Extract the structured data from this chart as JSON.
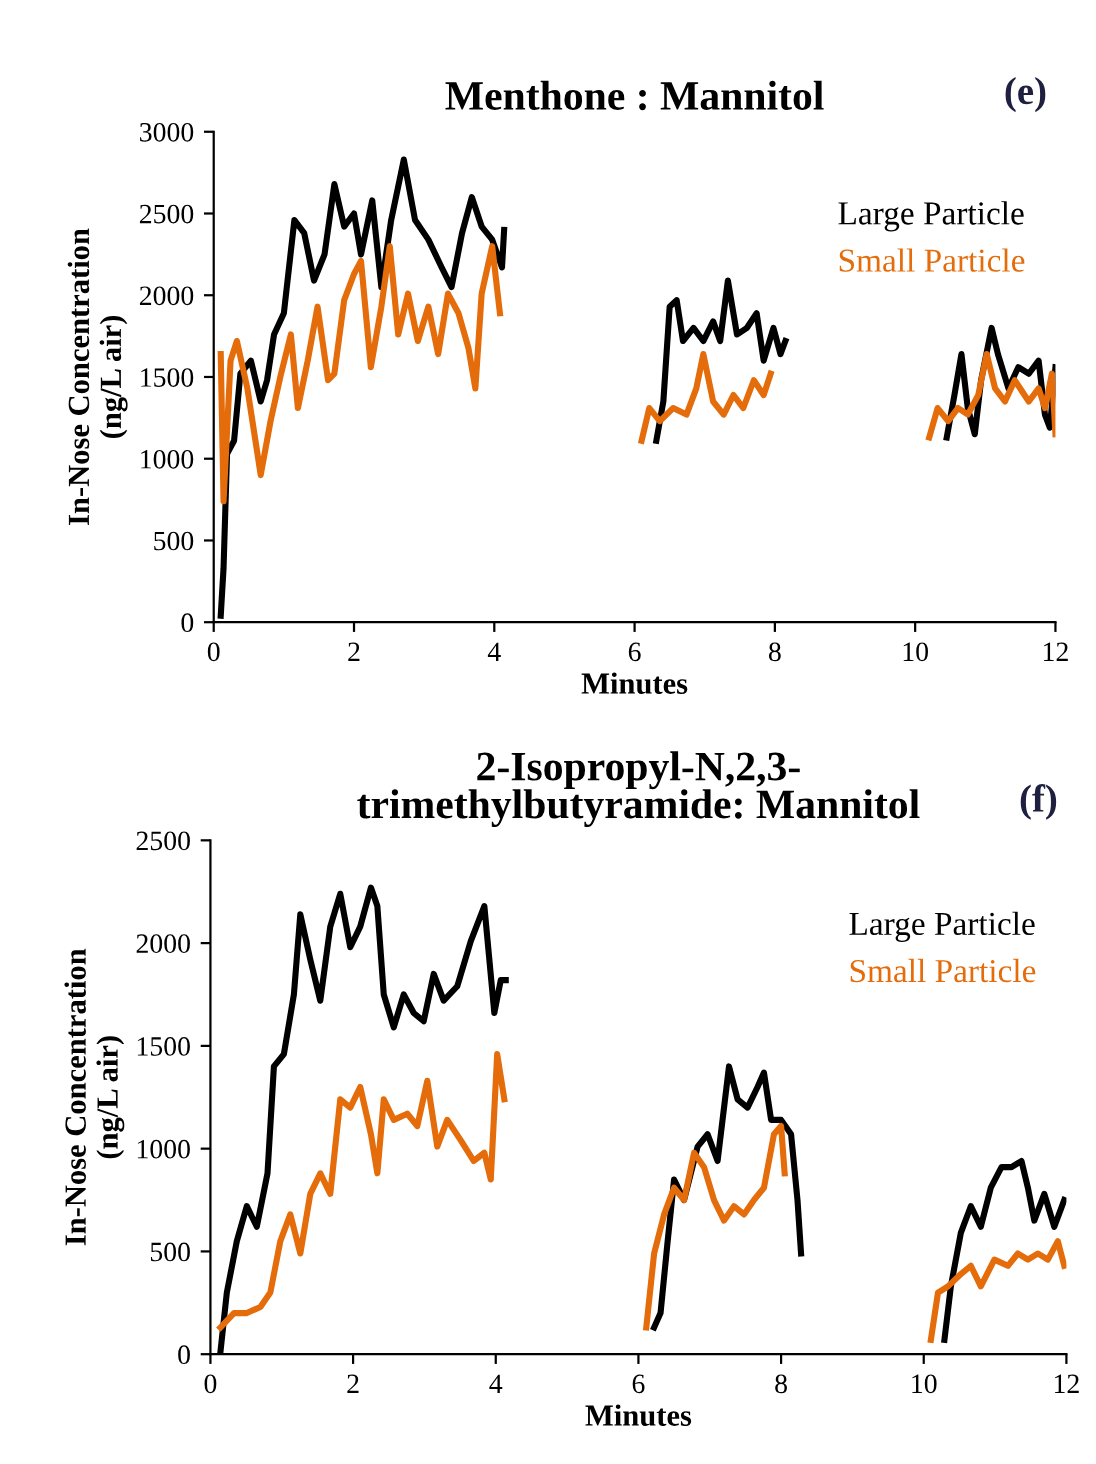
{
  "chart_data": [
    {
      "type": "line",
      "title": "Menthone : Mannitol",
      "xlabel": "Minutes",
      "ylabel": "In-Nose Concentration\n(ng/L air)",
      "annotations": [
        "(e)"
      ],
      "xlim": [
        0,
        12
      ],
      "xticks": [
        0,
        2,
        4,
        6,
        8,
        10,
        12
      ],
      "ylim": [
        0,
        3000
      ],
      "yticks": [
        0,
        500,
        1000,
        1500,
        2000,
        2500,
        3000
      ],
      "grid": false,
      "legend": "top right",
      "marker": "none",
      "line_style": "solid",
      "series": [
        {
          "name": "Large Particle",
          "color": "#000000",
          "x": [
            0.1,
            0.14,
            0.19,
            0.29,
            0.38,
            0.53,
            0.67,
            0.76,
            0.86,
            1.0,
            1.15,
            1.29,
            1.43,
            1.58,
            1.72,
            1.86,
            2.0,
            2.1,
            2.26,
            2.39,
            2.53,
            2.71,
            2.87,
            3.06,
            3.25,
            3.39,
            3.54,
            3.68,
            3.82,
            3.97,
            4.11,
            4.14,
            5,
            6.31,
            6.41,
            6.5,
            6.6,
            6.69,
            6.84,
            6.98,
            7.12,
            7.22,
            7.33,
            7.46,
            7.6,
            7.74,
            7.84,
            7.98,
            8.08,
            8.15,
            9,
            10.45,
            10.56,
            10.66,
            10.75,
            10.85,
            10.94,
            11.09,
            11.18,
            11.33,
            11.47,
            11.62,
            11.76,
            11.85,
            11.92,
            12.0
          ],
          "values": [
            40,
            330,
            1030,
            1110,
            1520,
            1600,
            1350,
            1480,
            1760,
            1890,
            2460,
            2380,
            2090,
            2250,
            2680,
            2420,
            2500,
            2250,
            2580,
            2050,
            2460,
            2830,
            2460,
            2340,
            2170,
            2050,
            2380,
            2600,
            2420,
            2340,
            2170,
            2400,
            null,
            1110,
            1350,
            1930,
            1970,
            1720,
            1800,
            1720,
            1840,
            1720,
            2090,
            1760,
            1800,
            1890,
            1600,
            1800,
            1640,
            1720,
            null,
            1130,
            1390,
            1640,
            1310,
            1150,
            1480,
            1800,
            1640,
            1430,
            1560,
            1520,
            1600,
            1270,
            1190,
            1560
          ]
        },
        {
          "name": "Small Particle",
          "color": "#e46c0a",
          "x": [
            0.1,
            0.14,
            0.24,
            0.33,
            0.48,
            0.67,
            0.81,
            0.96,
            1.1,
            1.2,
            1.34,
            1.48,
            1.63,
            1.72,
            1.86,
            2.0,
            2.1,
            2.24,
            2.39,
            2.51,
            2.63,
            2.77,
            2.91,
            3.06,
            3.2,
            3.34,
            3.49,
            3.63,
            3.73,
            3.82,
            3.97,
            4.08,
            5,
            6.1,
            6.21,
            6.36,
            6.55,
            6.74,
            6.88,
            6.98,
            7.12,
            7.27,
            7.41,
            7.55,
            7.7,
            7.84,
            7.94,
            9,
            10.2,
            10.32,
            10.47,
            10.61,
            10.75,
            10.9,
            11.02,
            11.14,
            11.28,
            11.42,
            11.62,
            11.76,
            11.85,
            11.95,
            12.0
          ],
          "values": [
            1640,
            740,
            1600,
            1720,
            1430,
            900,
            1230,
            1520,
            1760,
            1310,
            1600,
            1930,
            1480,
            1520,
            1970,
            2130,
            2210,
            1560,
            1930,
            2300,
            1760,
            2010,
            1720,
            1930,
            1640,
            2010,
            1890,
            1680,
            1430,
            2010,
            2300,
            1890,
            null,
            1110,
            1310,
            1230,
            1310,
            1270,
            1430,
            1640,
            1350,
            1270,
            1390,
            1310,
            1480,
            1390,
            1520,
            null,
            1130,
            1310,
            1230,
            1310,
            1270,
            1390,
            1640,
            1430,
            1350,
            1480,
            1350,
            1430,
            1310,
            1520,
            1150
          ]
        }
      ]
    },
    {
      "type": "line",
      "title": "2-Isopropyl-N,2,3-\ntrimethylbutyramide: Mannitol",
      "xlabel": "Minutes",
      "ylabel": "In-Nose Concentration\n(ng/L air)",
      "annotations": [
        "(f)"
      ],
      "xlim": [
        0,
        12
      ],
      "xticks": [
        0,
        2,
        4,
        6,
        8,
        10,
        12
      ],
      "ylim": [
        0,
        2500
      ],
      "yticks": [
        0,
        500,
        1000,
        1500,
        2000,
        2500
      ],
      "grid": false,
      "legend": "top right",
      "marker": "none",
      "line_style": "solid",
      "series": [
        {
          "name": "Large Particle",
          "color": "#000000",
          "x": [
            0.14,
            0.23,
            0.37,
            0.51,
            0.65,
            0.8,
            0.89,
            1.03,
            1.17,
            1.26,
            1.4,
            1.54,
            1.68,
            1.82,
            1.96,
            2.1,
            2.25,
            2.34,
            2.43,
            2.57,
            2.71,
            2.85,
            2.99,
            3.13,
            3.27,
            3.46,
            3.65,
            3.84,
            3.98,
            4.07,
            4.14,
            5,
            6.22,
            6.31,
            6.41,
            6.5,
            6.64,
            6.83,
            6.97,
            7.11,
            7.27,
            7.39,
            7.53,
            7.67,
            7.76,
            7.86,
            8.0,
            8.14,
            8.23,
            8.28,
            9,
            10.29,
            10.38,
            10.52,
            10.66,
            10.8,
            10.94,
            11.09,
            11.23,
            11.37,
            11.46,
            11.55,
            11.69,
            11.83,
            11.97
          ],
          "values": [
            10,
            300,
            550,
            720,
            620,
            880,
            1400,
            1460,
            1750,
            2140,
            1920,
            1720,
            2080,
            2240,
            1980,
            2080,
            2270,
            2180,
            1750,
            1590,
            1750,
            1660,
            1620,
            1850,
            1720,
            1790,
            2010,
            2180,
            1660,
            1820,
            1820,
            null,
            130,
            200,
            550,
            850,
            750,
            1010,
            1070,
            940,
            1400,
            1240,
            1200,
            1300,
            1370,
            1140,
            1140,
            1070,
            750,
            490,
            null,
            70,
            330,
            590,
            720,
            620,
            810,
            910,
            910,
            940,
            810,
            650,
            780,
            620,
            750
          ]
        },
        {
          "name": "Small Particle",
          "color": "#e46c0a",
          "x": [
            0.14,
            0.33,
            0.51,
            0.7,
            0.84,
            0.98,
            1.12,
            1.26,
            1.4,
            1.54,
            1.68,
            1.82,
            1.96,
            2.1,
            2.25,
            2.34,
            2.43,
            2.57,
            2.76,
            2.9,
            3.04,
            3.18,
            3.32,
            3.51,
            3.69,
            3.84,
            3.93,
            4.02,
            4.12,
            5,
            6.11,
            6.22,
            6.36,
            6.5,
            6.64,
            6.78,
            6.92,
            7.06,
            7.2,
            7.34,
            7.48,
            7.62,
            7.76,
            7.9,
            8.0,
            8.05,
            9,
            10.1,
            10.2,
            10.34,
            10.52,
            10.66,
            10.8,
            10.99,
            11.18,
            11.32,
            11.46,
            11.6,
            11.74,
            11.88,
            11.97
          ],
          "values": [
            130,
            200,
            200,
            230,
            300,
            550,
            680,
            490,
            780,
            880,
            780,
            1240,
            1200,
            1300,
            1070,
            880,
            1240,
            1140,
            1170,
            1110,
            1330,
            1010,
            1140,
            1040,
            940,
            980,
            850,
            1460,
            1240,
            null,
            130,
            490,
            680,
            810,
            750,
            980,
            910,
            750,
            650,
            720,
            680,
            750,
            810,
            1070,
            1110,
            880,
            null,
            70,
            300,
            330,
            390,
            430,
            330,
            460,
            430,
            490,
            460,
            490,
            460,
            550,
            430
          ]
        }
      ]
    }
  ]
}
